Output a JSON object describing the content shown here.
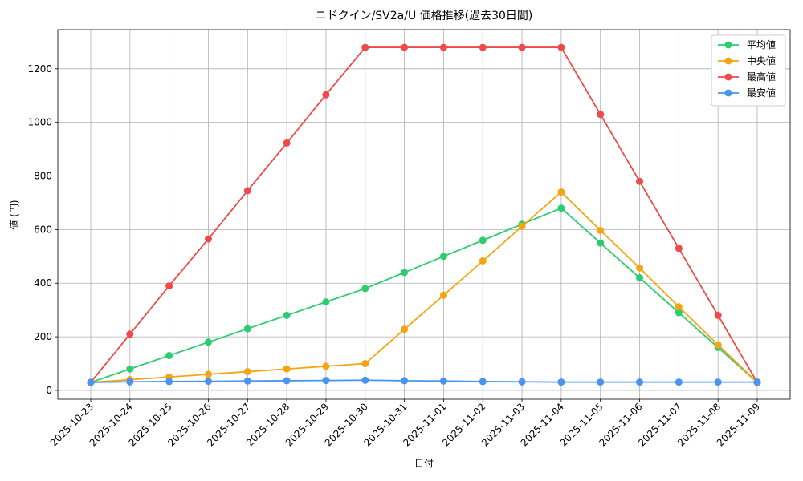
{
  "chart_data": {
    "type": "line",
    "title": "ニドクイン/SV2a/U 価格推移(過去30日間)",
    "x_label": "日付",
    "y_label": "値 (円)",
    "categories": [
      "2025-10-23",
      "2025-10-24",
      "2025-10-25",
      "2025-10-26",
      "2025-10-27",
      "2025-10-28",
      "2025-10-29",
      "2025-10-30",
      "2025-10-31",
      "2025-11-01",
      "2025-11-02",
      "2025-11-03",
      "2025-11-04",
      "2025-11-05",
      "2025-11-06",
      "2025-11-07",
      "2025-11-08",
      "2025-11-09"
    ],
    "series": [
      {
        "name": "平均値",
        "color": "#2ecc71",
        "values": [
          30,
          80,
          130,
          180,
          230,
          280,
          330,
          380,
          440,
          500,
          560,
          620,
          680,
          550,
          420,
          290,
          160,
          30
        ]
      },
      {
        "name": "中央値",
        "color": "#f5a511",
        "values": [
          30,
          40,
          50,
          60,
          70,
          80,
          90,
          100,
          228,
          355,
          483,
          612,
          740,
          597,
          457,
          312,
          170,
          30
        ]
      },
      {
        "name": "最高値",
        "color": "#ef4a4a",
        "values": [
          30,
          210,
          390,
          565,
          745,
          923,
          1103,
          1280,
          1280,
          1280,
          1280,
          1280,
          1280,
          1030,
          780,
          530,
          280,
          30
        ]
      },
      {
        "name": "最安値",
        "color": "#4a94ef",
        "values": [
          30,
          32,
          33,
          34,
          35,
          36,
          37,
          38,
          36,
          35,
          33,
          32,
          31,
          31,
          31,
          31,
          31,
          31
        ]
      }
    ],
    "ylim": [
      -33,
      1346
    ],
    "yticks": [
      0,
      200,
      400,
      600,
      800,
      1000,
      1200
    ],
    "grid": true,
    "legend": "upper right"
  }
}
